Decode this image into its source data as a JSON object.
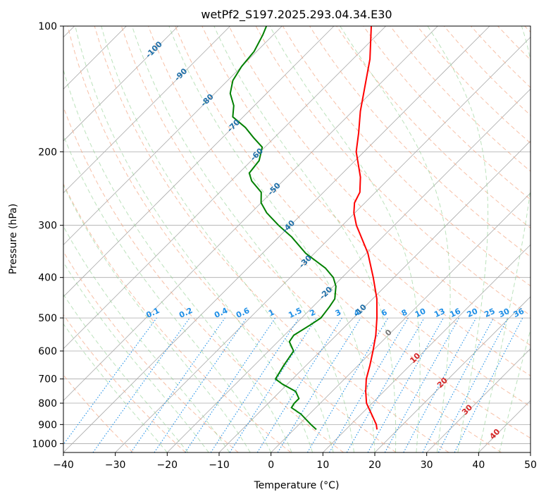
{
  "chart_data": {
    "type": "line",
    "title": "wetPf2_S197.2025.293.04.34.E30",
    "xlabel": "Temperature (°C)",
    "ylabel": "Pressure (hPa)",
    "xlim": [
      -40,
      50
    ],
    "ylim": [
      1050,
      100
    ],
    "y_scale": "log",
    "x_ticks": [
      -40,
      -30,
      -20,
      -10,
      0,
      10,
      20,
      30,
      40,
      50
    ],
    "y_ticks": [
      100,
      200,
      300,
      400,
      500,
      600,
      700,
      800,
      900,
      1000
    ],
    "grid": true,
    "skew_diagram": true,
    "series": [
      {
        "role": "temperature",
        "color": "#ff0000",
        "p": [
          925,
          900,
          850,
          800,
          750,
          700,
          650,
          600,
          550,
          500,
          450,
          400,
          350,
          300,
          280,
          265,
          250,
          230,
          200,
          180,
          160,
          140,
          120,
          100
        ],
        "t": [
          16.0,
          14.9,
          12.0,
          8.9,
          6.5,
          4.2,
          2.3,
          0.1,
          -2.4,
          -5.5,
          -9.2,
          -14.0,
          -19.7,
          -27.3,
          -30.2,
          -32.0,
          -33.0,
          -35.8,
          -41.5,
          -44.7,
          -48.5,
          -52.3,
          -56.7,
          -62.8
        ]
      },
      {
        "role": "dewpoint",
        "color": "#008000",
        "p": [
          925,
          900,
          850,
          820,
          800,
          780,
          750,
          720,
          700,
          650,
          600,
          570,
          550,
          520,
          500,
          470,
          450,
          420,
          400,
          380,
          350,
          320,
          300,
          280,
          265,
          250,
          235,
          225,
          210,
          195,
          185,
          175,
          165,
          155,
          145,
          135,
          125,
          115,
          105,
          100
        ],
        "td": [
          4.3,
          2.3,
          -1.6,
          -4.7,
          -5.0,
          -5.0,
          -7.0,
          -11.0,
          -13.3,
          -14.3,
          -15.2,
          -17.8,
          -18.2,
          -17.0,
          -16.3,
          -16.8,
          -17.3,
          -19.5,
          -21.7,
          -25.0,
          -31.7,
          -37.5,
          -42.3,
          -47.0,
          -50.0,
          -52.0,
          -56.0,
          -58.0,
          -58.5,
          -60.5,
          -64.0,
          -67.5,
          -72.0,
          -74.0,
          -77.0,
          -79.0,
          -80.0,
          -80.5,
          -82.0,
          -83.0
        ]
      }
    ],
    "dry_adiabat_labels": [
      "-100",
      "-90",
      "-80",
      "-70",
      "-60",
      "-50",
      "-40",
      "-30",
      "-20",
      "-10"
    ],
    "mixing_ratio_labels": [
      "0.1",
      "0.2",
      "0.4",
      "0.6",
      "1",
      "1.5",
      "2",
      "3",
      "4",
      "6",
      "8",
      "10",
      "13",
      "16",
      "20",
      "25",
      "30",
      "36"
    ],
    "moist_adiabat_labels": [
      "0",
      "10",
      "20",
      "30",
      "40"
    ],
    "colors": {
      "temperature": "#ff0000",
      "dewpoint": "#008000",
      "isotherm": "#aaaaaa",
      "dry_adiabat": "#f4a582",
      "moist_adiabat": "#8fcf8f",
      "mixing_ratio": "#1e8fe6",
      "isobar": "#aaaaaa"
    }
  }
}
